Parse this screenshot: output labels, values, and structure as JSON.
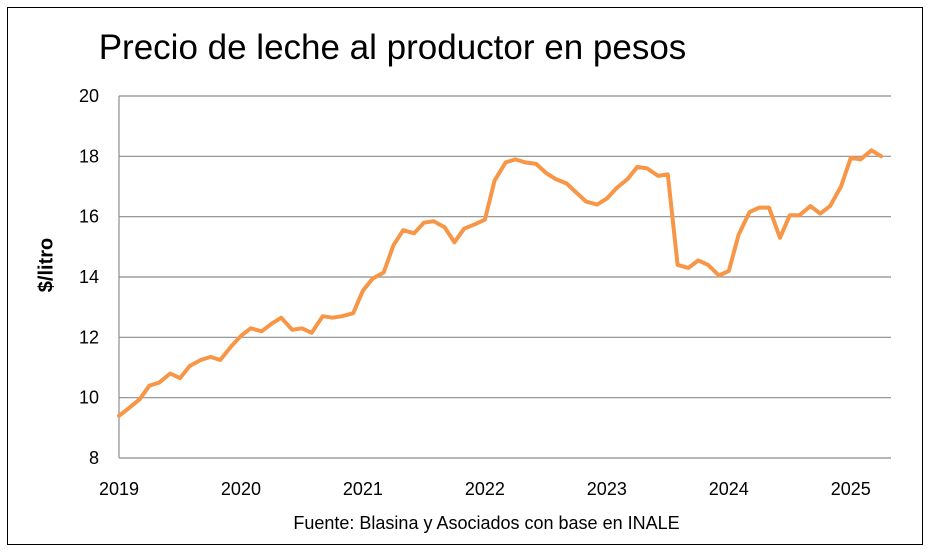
{
  "chart_data": {
    "type": "line",
    "title": "Precio de leche al productor en pesos",
    "ylabel": "$/litro",
    "xlabel": "",
    "source": "Fuente: Blasina y Asociados con base en INALE",
    "ylim": [
      8,
      20
    ],
    "yticks": [
      "8",
      "10",
      "12",
      "14",
      "16",
      "18",
      "20"
    ],
    "xlim": [
      2019,
      2025.33
    ],
    "xticks": [
      "2019",
      "2020",
      "2021",
      "2022",
      "2023",
      "2024",
      "2025"
    ],
    "grid": "horizontal",
    "legend": "none",
    "color": "#F79646",
    "x": [
      2019.0,
      2019.08,
      2019.17,
      2019.25,
      2019.33,
      2019.42,
      2019.5,
      2019.58,
      2019.67,
      2019.75,
      2019.83,
      2019.92,
      2020.0,
      2020.08,
      2020.17,
      2020.25,
      2020.33,
      2020.42,
      2020.5,
      2020.58,
      2020.67,
      2020.75,
      2020.83,
      2020.92,
      2021.0,
      2021.08,
      2021.17,
      2021.25,
      2021.33,
      2021.42,
      2021.5,
      2021.58,
      2021.67,
      2021.75,
      2021.83,
      2021.92,
      2022.0,
      2022.08,
      2022.17,
      2022.25,
      2022.33,
      2022.42,
      2022.5,
      2022.58,
      2022.67,
      2022.75,
      2022.83,
      2022.92,
      2023.0,
      2023.08,
      2023.17,
      2023.25,
      2023.33,
      2023.42,
      2023.5,
      2023.58,
      2023.67,
      2023.75,
      2023.83,
      2023.92,
      2024.0,
      2024.08,
      2024.17,
      2024.25,
      2024.33,
      2024.42,
      2024.5,
      2024.58,
      2024.67,
      2024.75,
      2024.83,
      2024.92,
      2025.0,
      2025.08,
      2025.17,
      2025.25
    ],
    "values": [
      9.4,
      9.65,
      9.95,
      10.4,
      10.5,
      10.8,
      10.65,
      11.05,
      11.25,
      11.35,
      11.25,
      11.7,
      12.05,
      12.3,
      12.2,
      12.45,
      12.65,
      12.25,
      12.3,
      12.15,
      12.7,
      12.65,
      12.7,
      12.8,
      13.55,
      13.95,
      14.15,
      15.05,
      15.55,
      15.45,
      15.8,
      15.85,
      15.65,
      15.15,
      15.6,
      15.75,
      15.9,
      17.2,
      17.8,
      17.9,
      17.8,
      17.75,
      17.45,
      17.25,
      17.1,
      16.8,
      16.5,
      16.4,
      16.6,
      16.95,
      17.25,
      17.65,
      17.6,
      17.35,
      17.4,
      14.4,
      14.3,
      14.55,
      14.4,
      14.05,
      14.2,
      15.4,
      16.15,
      16.3,
      16.3,
      15.3,
      16.05,
      16.05,
      16.35,
      16.1,
      16.35,
      17.0,
      17.95,
      17.9,
      18.2,
      18.0
    ]
  }
}
